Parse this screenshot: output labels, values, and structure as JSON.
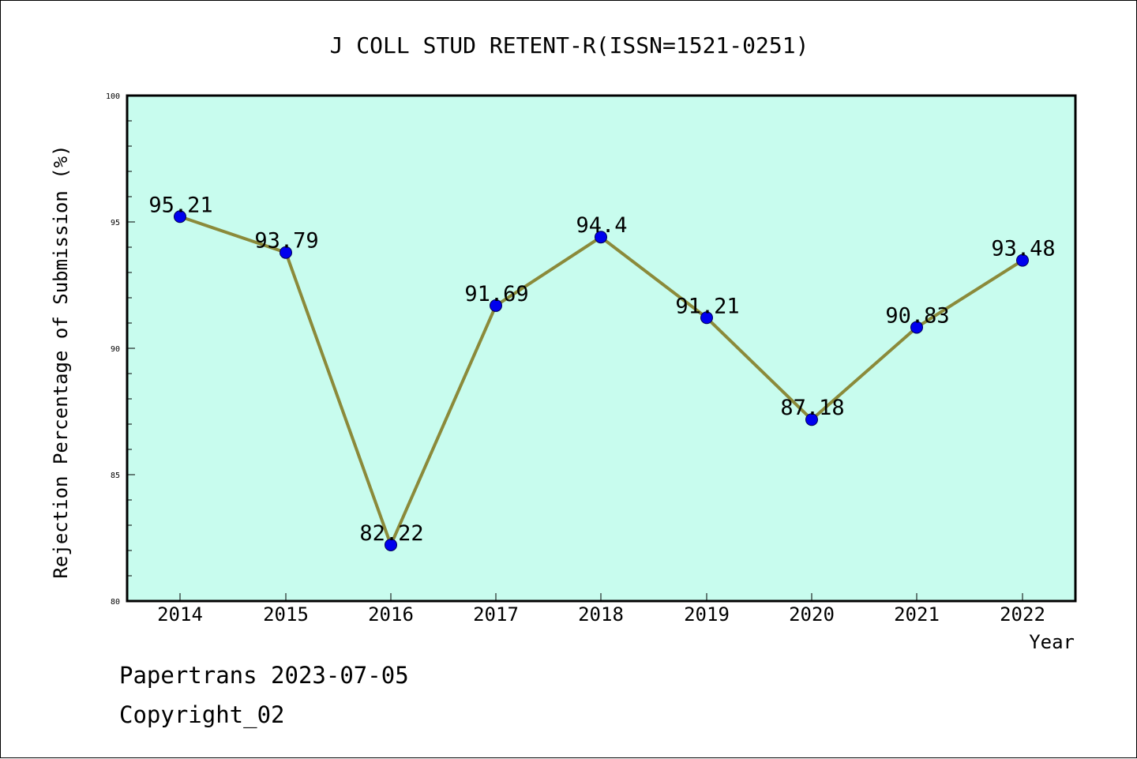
{
  "chart_data": {
    "type": "line",
    "title": "J COLL STUD RETENT-R(ISSN=1521-0251)",
    "xlabel": "Year",
    "ylabel": "Rejection Percentage of Submission (%)",
    "categories": [
      "2014",
      "2015",
      "2016",
      "2017",
      "2018",
      "2019",
      "2020",
      "2021",
      "2022"
    ],
    "values": [
      95.21,
      93.79,
      82.22,
      91.69,
      94.4,
      91.21,
      87.18,
      90.83,
      93.48
    ],
    "data_labels": [
      "95.21",
      "93.79",
      "82.22",
      "91.69",
      "94.4",
      "91.21",
      "87.18",
      "90.83",
      "93.48"
    ],
    "ylim": [
      80,
      100
    ],
    "y_ticks": [
      "80",
      "85",
      "90",
      "95",
      "100"
    ],
    "grid": false,
    "colors": {
      "plot_background": "#c8fcee",
      "line": "#8b8a3a",
      "marker": "#0000ee"
    }
  },
  "footer": {
    "line1": "Papertrans 2023-07-05",
    "line2": "Copyright_02"
  }
}
